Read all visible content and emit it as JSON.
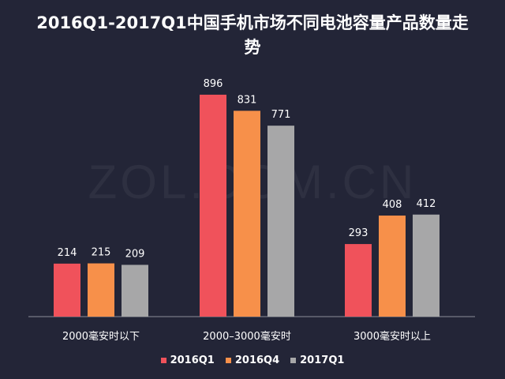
{
  "watermark": "ZOL.COM.CN",
  "chart_data": {
    "type": "bar",
    "title": "2016Q1-2017Q1中国手机市场不同电池容量产品数量走势",
    "xlabel": "",
    "ylabel": "",
    "ylim": [
      0,
      950
    ],
    "grid": false,
    "legend": "bottom",
    "categories": [
      "2000毫安时以下",
      "2000–3000毫安时",
      "3000毫安时以上"
    ],
    "series": [
      {
        "name": "2016Q1",
        "color": "#f0525b",
        "values": [
          214,
          896,
          293
        ]
      },
      {
        "name": "2016Q4",
        "color": "#f7904a",
        "values": [
          215,
          831,
          408
        ]
      },
      {
        "name": "2017Q1",
        "color": "#a7a7a8",
        "values": [
          209,
          771,
          412
        ]
      }
    ]
  }
}
